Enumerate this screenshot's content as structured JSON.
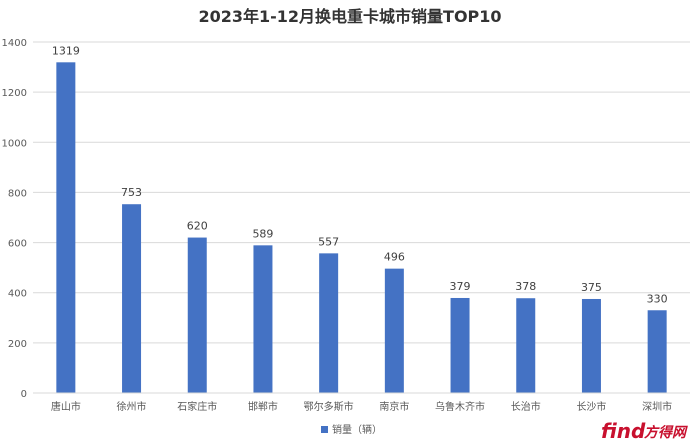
{
  "chart_data": {
    "type": "bar",
    "title": "2023年1-12月换电重卡城市销量TOP10",
    "categories": [
      "唐山市",
      "徐州市",
      "石家庄市",
      "邯郸市",
      "鄂尔多斯市",
      "南京市",
      "乌鲁木齐市",
      "长治市",
      "长沙市",
      "深圳市"
    ],
    "series": [
      {
        "name": "销量（辆）",
        "values": [
          1319,
          753,
          620,
          589,
          557,
          496,
          379,
          378,
          375,
          330
        ],
        "color": "#4472C4"
      }
    ],
    "ylim": [
      0,
      1400
    ],
    "yticks": [
      0,
      200,
      400,
      600,
      800,
      1000,
      1200,
      1400
    ],
    "grid": true,
    "legend_position": "bottom",
    "data_labels": true
  },
  "watermark": {
    "brand": "find",
    "suffix": "方得网"
  }
}
